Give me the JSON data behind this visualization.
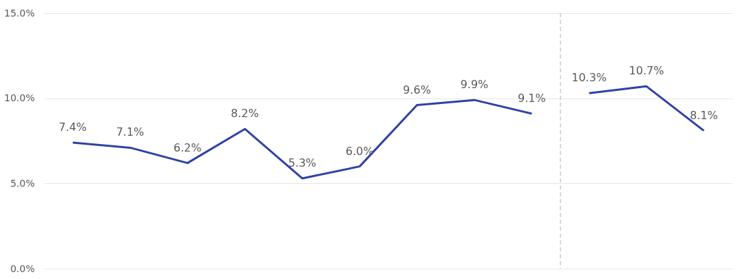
{
  "chart_data": {
    "type": "line",
    "categories": [
      null,
      null,
      null,
      null,
      null,
      null,
      null,
      null,
      null,
      null,
      null,
      null
    ],
    "series": [
      {
        "color": "#2e41a8",
        "values": [
          7.4,
          7.1,
          6.2,
          8.2,
          5.3,
          6.0,
          9.6,
          9.9,
          9.1,
          null,
          null,
          null
        ],
        "value_labels": [
          "7.4%",
          "7.1%",
          "6.2%",
          "8.2%",
          "5.3%",
          "6.0%",
          "9.6%",
          "9.9%",
          "9.1%",
          null,
          null,
          null
        ]
      },
      {
        "color": "#2e41a8",
        "values": [
          null,
          null,
          null,
          null,
          null,
          null,
          null,
          null,
          null,
          10.3,
          10.7,
          8.1
        ],
        "value_labels": [
          null,
          null,
          null,
          null,
          null,
          null,
          null,
          null,
          null,
          "10.3%",
          "10.7%",
          "8.1%"
        ]
      }
    ],
    "ylim": [
      0,
      15
    ],
    "yticks": [
      {
        "value": 0,
        "label": "0.0%"
      },
      {
        "value": 5,
        "label": "5.0%"
      },
      {
        "value": 10,
        "label": "10.0%"
      },
      {
        "value": 15,
        "label": "15.0%"
      }
    ],
    "grid": "y",
    "marker": "none",
    "line_style": "solid",
    "legend": false
  }
}
